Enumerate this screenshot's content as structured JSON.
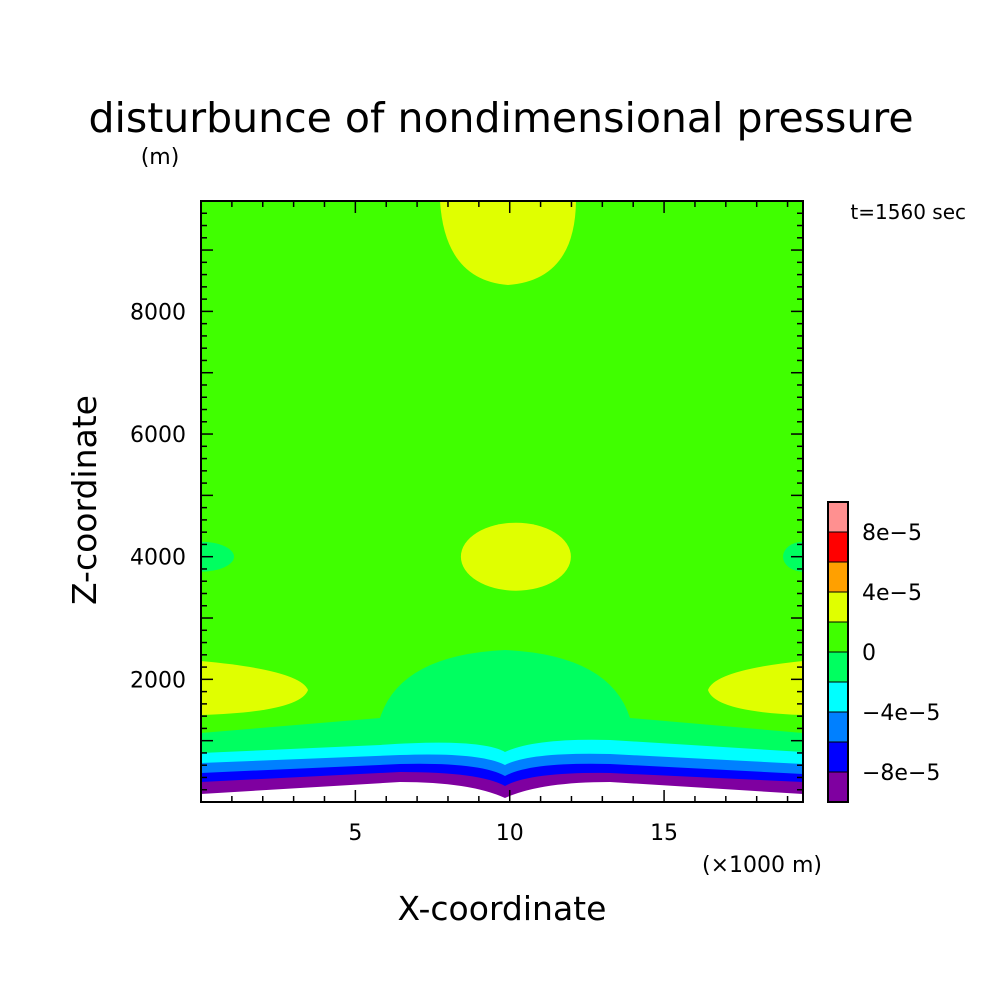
{
  "chart_data": {
    "type": "heatmap",
    "title": "disturbunce of nondimensional pressure",
    "time_label": "t=1560 sec",
    "xlabel": "X-coordinate",
    "ylabel": "Z-coordinate",
    "y_unit_label": "(m)",
    "x_unit_label": "(×1000 m)",
    "xlim": [
      0,
      19.5
    ],
    "ylim": [
      0,
      9800
    ],
    "x_ticks": [
      5,
      10,
      15
    ],
    "y_ticks": [
      2000,
      4000,
      6000,
      8000
    ],
    "colorbar": {
      "levels": [
        -0.0001,
        -8e-05,
        -6e-05,
        -4e-05,
        -2e-05,
        0,
        2e-05,
        4e-05,
        6e-05,
        8e-05,
        0.0001
      ],
      "colors": [
        "#7f00a0",
        "#0000ff",
        "#0080ff",
        "#00ffff",
        "#00ff60",
        "#40ff00",
        "#e0ff00",
        "#ffa000",
        "#ff0000",
        "#ff9090"
      ],
      "labels": [
        {
          "value": -8e-05,
          "text": "−8e−5"
        },
        {
          "value": -4e-05,
          "text": "−4e−5"
        },
        {
          "value": 0,
          "text": "0"
        },
        {
          "value": 4e-05,
          "text": "4e−5"
        },
        {
          "value": 8e-05,
          "text": "8e−5"
        }
      ]
    },
    "background_level": "0 to 2e-5",
    "regions": [
      {
        "level": "2e-5 to 4e-5",
        "shape": "top lobe",
        "x": [
          7.8,
          12.2
        ],
        "z": [
          8550,
          9800
        ]
      },
      {
        "level": "2e-5 to 4e-5",
        "shape": "ellipse",
        "center": [
          10.2,
          4000
        ],
        "half_width": 1.8,
        "half_height": 550
      },
      {
        "level": "2e-5 to 4e-5",
        "shape": "left lobe",
        "x": [
          0,
          3.5
        ],
        "z": [
          1450,
          2350
        ]
      },
      {
        "level": "2e-5 to 4e-5",
        "shape": "right lobe",
        "x": [
          16.5,
          19.5
        ],
        "z": [
          1450,
          2350
        ]
      },
      {
        "level": "0 to 2e-5 (small)",
        "shape": "left edge",
        "center": [
          0,
          4000
        ]
      },
      {
        "level": "0 to 2e-5 (small)",
        "shape": "right edge",
        "center": [
          19.5,
          4000
        ]
      },
      {
        "level": "-2e-5 to 0",
        "shape": "central dome",
        "x": [
          5.8,
          14.2
        ],
        "z_top": 2600
      },
      {
        "level": "lower layers",
        "description": "bands from -2e-5 down to -1e-4 near z = 100 to 1200"
      }
    ]
  }
}
